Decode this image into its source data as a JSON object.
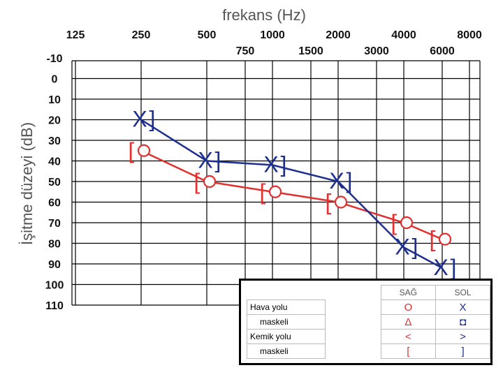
{
  "chart_data": {
    "type": "audiogram",
    "title": "frekans (Hz)",
    "ylabel": "İşitme düzeyi (dB)",
    "x_ticks_major": [
      "125",
      "250",
      "500",
      "1000",
      "2000",
      "4000",
      "8000"
    ],
    "x_ticks_minor": [
      "750",
      "1500",
      "3000",
      "6000"
    ],
    "y_ticks": [
      "-10",
      "0",
      "10",
      "20",
      "30",
      "40",
      "50",
      "60",
      "70",
      "80",
      "90",
      "100",
      "110"
    ],
    "ylim": [
      -10,
      110
    ],
    "y_inverted": true,
    "series": [
      {
        "name": "SAĞ",
        "color": "#e03030",
        "symbol": "[O",
        "x": [
          250,
          500,
          1000,
          2000,
          4000,
          6000
        ],
        "y": [
          35,
          50,
          55,
          60,
          70,
          78
        ]
      },
      {
        "name": "SOL",
        "color": "#1d2f8f",
        "symbol": "X]",
        "x": [
          250,
          500,
          1000,
          2000,
          4000,
          6000
        ],
        "y": [
          20,
          40,
          42,
          50,
          82,
          92
        ]
      }
    ],
    "legend": {
      "col_headers": [
        "SAĞ",
        "SOL"
      ],
      "rows": [
        {
          "label": "Hava yolu",
          "sag": "O",
          "sol": "X"
        },
        {
          "label": "maskeli",
          "sag": "Δ",
          "sol": "◘"
        },
        {
          "label": "Kemik yolu",
          "sag": "<",
          "sol": ">"
        },
        {
          "label": "maskeli",
          "sag": "[",
          "sol": "]"
        }
      ]
    }
  }
}
